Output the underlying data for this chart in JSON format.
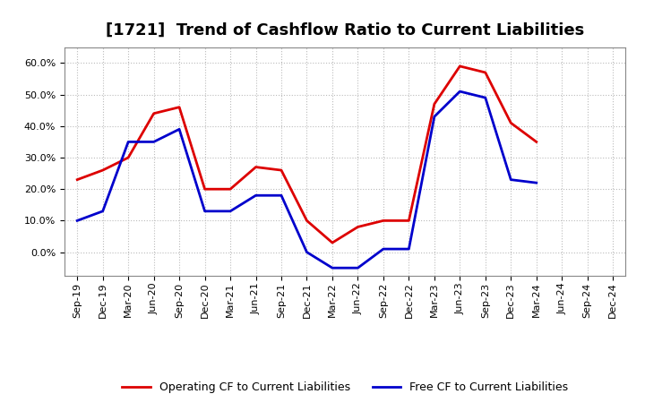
{
  "title": "[1721]  Trend of Cashflow Ratio to Current Liabilities",
  "x_labels": [
    "Sep-19",
    "Dec-19",
    "Mar-20",
    "Jun-20",
    "Sep-20",
    "Dec-20",
    "Mar-21",
    "Jun-21",
    "Sep-21",
    "Dec-21",
    "Mar-22",
    "Jun-22",
    "Sep-22",
    "Dec-22",
    "Mar-23",
    "Jun-23",
    "Sep-23",
    "Dec-23",
    "Mar-24",
    "Jun-24",
    "Sep-24",
    "Dec-24"
  ],
  "operating_cf": [
    0.23,
    0.26,
    0.3,
    0.44,
    0.46,
    0.2,
    0.2,
    0.27,
    0.26,
    0.1,
    0.03,
    0.08,
    0.1,
    0.1,
    0.47,
    0.59,
    0.57,
    0.41,
    0.35,
    null,
    null,
    null
  ],
  "free_cf": [
    0.1,
    0.13,
    0.35,
    0.35,
    0.39,
    0.13,
    0.13,
    0.18,
    0.18,
    0.0,
    -0.05,
    -0.05,
    0.01,
    0.01,
    0.43,
    0.51,
    0.49,
    0.23,
    0.22,
    null,
    null,
    null
  ],
  "operating_color": "#dd0000",
  "free_color": "#0000cc",
  "ylim_min": -0.075,
  "ylim_max": 0.65,
  "yticks": [
    0.0,
    0.1,
    0.2,
    0.3,
    0.4,
    0.5,
    0.6
  ],
  "legend_operating": "Operating CF to Current Liabilities",
  "legend_free": "Free CF to Current Liabilities",
  "background_color": "#ffffff",
  "grid_color": "#bbbbbb",
  "title_fontsize": 13,
  "tick_fontsize": 8
}
